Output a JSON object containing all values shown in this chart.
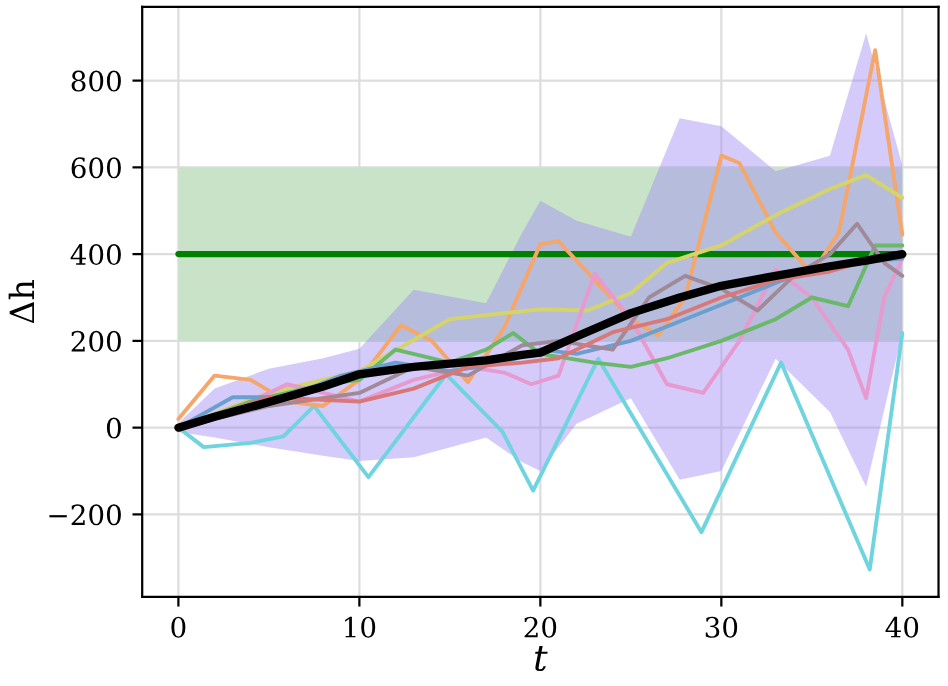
{
  "chart_data": {
    "type": "line",
    "xlabel": "t",
    "ylabel": "Δh",
    "xlim": [
      -2,
      42
    ],
    "ylim": [
      -390,
      970
    ],
    "xticks": [
      0,
      10,
      20,
      30,
      40
    ],
    "yticks": [
      {
        "value": -200,
        "label": "−200"
      },
      0,
      200,
      400,
      600,
      800
    ],
    "grid": true,
    "marker": "none",
    "line_style": "solid",
    "bands": [
      {
        "axis": "y",
        "from": 200,
        "to": 600,
        "color": "#c8e3c8"
      }
    ],
    "ref_lines": [
      {
        "axis": "y",
        "value": 400,
        "color": "#008000",
        "line_style": "solid"
      }
    ],
    "series": [
      {
        "color": "#6fd3e0",
        "x": [
          0,
          1.4,
          4,
          5.8,
          7.5,
          10.5,
          14.8,
          17.9,
          19.6,
          23.2,
          28.9,
          33.3,
          38.2,
          40
        ],
        "values": [
          0,
          -45,
          -35,
          -20,
          50,
          -114,
          123,
          -9,
          -145,
          159,
          -241,
          150,
          -327,
          218
        ]
      },
      {
        "color": "#f5a66a",
        "x": [
          0,
          2,
          4,
          6,
          8,
          10,
          12.3,
          14,
          16,
          18,
          20,
          21,
          23,
          25,
          26.5,
          28,
          30,
          31,
          33,
          35,
          36.5,
          38.5,
          40
        ],
        "values": [
          20,
          120,
          110,
          60,
          50,
          110,
          236,
          200,
          105,
          230,
          423,
          430,
          340,
          250,
          213,
          300,
          627,
          610,
          450,
          355,
          450,
          870,
          445
        ]
      },
      {
        "color": "#d4d46a",
        "x": [
          0,
          5,
          10,
          15,
          20,
          22.6,
          25,
          27,
          30,
          33,
          36,
          38,
          40
        ],
        "values": [
          0,
          80,
          130,
          250,
          273,
          270,
          310,
          380,
          420,
          490,
          550,
          582,
          530
        ]
      },
      {
        "color": "#e69ad0",
        "x": [
          0,
          3,
          6,
          8,
          10,
          13,
          16,
          18,
          19.5,
          21,
          23,
          25,
          27,
          29,
          31,
          33,
          35,
          37,
          38,
          39,
          40
        ],
        "values": [
          0,
          40,
          100,
          80,
          60,
          110,
          140,
          127,
          100,
          120,
          355,
          250,
          100,
          80,
          200,
          364,
          300,
          180,
          68,
          300,
          390
        ]
      },
      {
        "color": "#6ab86a",
        "x": [
          0,
          4,
          8,
          10,
          12,
          15,
          17,
          18.5,
          20,
          23,
          25,
          27,
          30,
          33,
          35,
          37,
          38.5,
          40
        ],
        "values": [
          0,
          60,
          100,
          110,
          180,
          150,
          180,
          218,
          170,
          150,
          140,
          160,
          200,
          250,
          300,
          280,
          420,
          420
        ]
      },
      {
        "color": "#6a9fd0",
        "x": [
          0,
          3,
          6,
          9,
          12,
          15,
          18,
          20,
          22,
          25,
          28,
          31,
          34,
          37,
          40
        ],
        "values": [
          0,
          70,
          70,
          120,
          150,
          130,
          150,
          180,
          170,
          200,
          250,
          300,
          350,
          380,
          390
        ]
      },
      {
        "color": "#a08a9a",
        "x": [
          0,
          5,
          10,
          13,
          16,
          19,
          21,
          24,
          26,
          28,
          30,
          32,
          34,
          36,
          37.5,
          39,
          40
        ],
        "values": [
          0,
          50,
          80,
          140,
          120,
          190,
          200,
          180,
          300,
          350,
          320,
          270,
          350,
          400,
          470,
          380,
          350
        ]
      },
      {
        "color": "#d87878",
        "x": [
          0,
          5,
          10,
          13,
          16,
          19,
          21,
          24,
          27,
          30,
          33,
          36,
          38,
          40
        ],
        "values": [
          0,
          70,
          60,
          90,
          140,
          150,
          160,
          220,
          250,
          300,
          340,
          360,
          385,
          400
        ]
      },
      {
        "color": "#000000",
        "x": [
          0,
          2,
          5,
          8,
          10,
          13,
          17,
          19,
          20,
          22,
          25,
          27.7,
          30,
          33,
          36,
          38,
          40
        ],
        "values": [
          0,
          25,
          59,
          95,
          123,
          140,
          155,
          168,
          173,
          210,
          264,
          300,
          327,
          350,
          372,
          385,
          400
        ],
        "lower": [
          -10,
          -23,
          -45,
          -65,
          -77,
          -68,
          -23,
          -80,
          -100,
          9,
          68,
          -120,
          -100,
          159,
          36,
          -136,
          218
        ],
        "upper": [
          10,
          90,
          136,
          160,
          182,
          318,
          287,
          450,
          523,
          477,
          440,
          713,
          695,
          591,
          627,
          909,
          605
        ]
      }
    ]
  }
}
